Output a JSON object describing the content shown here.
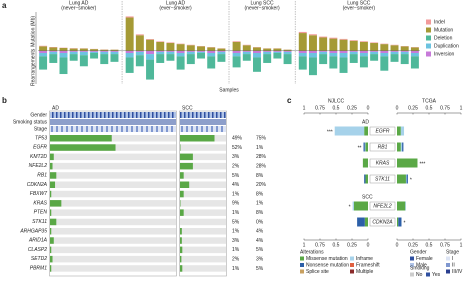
{
  "chart_data": [
    {
      "type": "bar",
      "label": "a",
      "ylabel_top": "Mutation (Mb)",
      "ylabel_bottom": "Rearrangements",
      "xlabel": "Samples",
      "ylim": [
        -30,
        35
      ],
      "groups": [
        {
          "name": "Lung AD",
          "note": "(never−smoker)"
        },
        {
          "name": "Lung AD",
          "note": "(ever−smoker)"
        },
        {
          "name": "Lung SCC",
          "note": "(never−smoker)"
        },
        {
          "name": "Lung SCC",
          "note": "(ever−smoker)"
        }
      ],
      "series": [
        {
          "name": "Indel",
          "color": "#f29a9a",
          "values": [
            [
              0.5,
              0.4,
              0.3,
              0.3,
              0.2,
              0.2,
              0.2,
              0.1
            ],
            [
              1,
              0.8,
              0.6,
              0.5,
              0.5,
              0.4,
              0.4,
              0.3,
              0.3,
              0.2
            ],
            [
              0.6,
              0.4,
              0.3,
              0.2,
              0.2,
              0.1
            ],
            [
              1,
              0.9,
              0.8,
              0.8,
              0.7,
              0.6,
              0.6,
              0.5,
              0.4,
              0.4,
              0.3,
              0.3
            ]
          ]
        },
        {
          "name": "Mutation",
          "color": "#a59a35",
          "values": [
            [
              4,
              3,
              2.5,
              2,
              2,
              1.5,
              1,
              1
            ],
            [
              30,
              14,
              10,
              8,
              7,
              6,
              5,
              4,
              3,
              2
            ],
            [
              8,
              5,
              3,
              2,
              2,
              1
            ],
            [
              16,
              14,
              12,
              11,
              10,
              9,
              8,
              7,
              6,
              5,
              4,
              3
            ]
          ]
        },
        {
          "name": "Deletion",
          "color": "#4fb89a",
          "values": [
            [
              -12,
              -8,
              -15,
              -6,
              -10,
              -5,
              -9,
              -7
            ],
            [
              -14,
              -10,
              -18,
              -8,
              -6,
              -12,
              -9,
              -5,
              -11,
              -7
            ],
            [
              -10,
              -6,
              -13,
              -8,
              -5,
              -9
            ],
            [
              -12,
              -16,
              -9,
              -11,
              -14,
              -8,
              -10,
              -6,
              -13,
              -7,
              -9,
              -11
            ]
          ]
        },
        {
          "name": "Duplication",
          "color": "#6cc3e0",
          "values": [
            [
              -3,
              -2,
              -4,
              -2,
              -3,
              -1,
              -2,
              -2
            ],
            [
              -4,
              -3,
              -5,
              -2,
              -2,
              -3,
              -2,
              -1,
              -3,
              -2
            ],
            [
              -3,
              -2,
              -4,
              -2,
              -1,
              -2
            ],
            [
              -3,
              -4,
              -2,
              -3,
              -4,
              -2,
              -3,
              -2,
              -3,
              -2,
              -2,
              -3
            ]
          ]
        },
        {
          "name": "Inversion",
          "color": "#c77ad9",
          "values": [
            [
              -2,
              -1,
              -2,
              -1,
              -1,
              -1,
              -1,
              -1
            ],
            [
              -2,
              -1,
              -3,
              -1,
              -1,
              -2,
              -1,
              -1,
              -2,
              -1
            ],
            [
              -2,
              -1,
              -2,
              -1,
              -1,
              -1
            ],
            [
              -2,
              -2,
              -1,
              -2,
              -2,
              -1,
              -2,
              -1,
              -2,
              -1,
              -1,
              -2
            ]
          ]
        }
      ]
    },
    {
      "type": "oncoprint",
      "label": "b",
      "covariates": [
        "Gender",
        "Smoking status",
        "Stage"
      ],
      "categories": [
        "TP53",
        "EGFR",
        "KMT2D",
        "NFE2L2",
        "RB1",
        "CDKN2A",
        "FBXW7",
        "KRAS",
        "PTEN",
        "STK11",
        "ARHGAP35",
        "ARID1A",
        "CLASP2",
        "SETD2",
        "PBRM1"
      ],
      "bar_color": "#5aa846",
      "series": [
        {
          "name": "AD",
          "text_color": "#222222",
          "values": [
            49,
            52,
            3,
            2,
            5,
            4,
            1,
            9,
            1,
            5,
            1,
            3,
            1,
            2,
            1
          ],
          "value_labels": [
            "49%",
            "52%",
            "3%",
            "2%",
            "5%",
            "4%",
            "1%",
            "9%",
            "1%",
            "5%",
            "1%",
            "3%",
            "1%",
            "2%",
            "1%"
          ]
        },
        {
          "name": "SCC",
          "text_color": "#e0443c",
          "values": [
            75,
            1,
            28,
            28,
            8,
            20,
            8,
            1,
            8,
            0,
            4,
            4,
            5,
            3,
            5
          ],
          "value_labels": [
            "75%",
            "1%",
            "28%",
            "28%",
            "8%",
            "20%",
            "8%",
            "1%",
            "8%",
            "0%",
            "4%",
            "4%",
            "5%",
            "3%",
            "5%"
          ]
        }
      ]
    },
    {
      "type": "butterfly",
      "label": "c",
      "cohorts": [
        "NJLCC",
        "TCGA"
      ],
      "xlim": [
        0,
        1
      ],
      "xticks": [
        1,
        0.75,
        0.5,
        0.25,
        0
      ],
      "groups": [
        {
          "name": "AD",
          "categories": [
            "EGFR",
            "RB1",
            "KRAS",
            "STK11"
          ],
          "stars": [
            "***",
            "**",
            "***",
            "*"
          ],
          "star_side": [
            "left",
            "left",
            "right",
            "right"
          ],
          "segments": [
            {
              "color": "#5aa846",
              "NJLCC": [
                0.06,
                0.04,
                0.08,
                0.04
              ],
              "TCGA": [
                0.06,
                0.06,
                0.32,
                0.14
              ]
            },
            {
              "color": "#a6d2ea",
              "NJLCC": [
                0.46,
                0.01,
                0,
                0
              ],
              "TCGA": [
                0.05,
                0.02,
                0,
                0.01
              ]
            },
            {
              "color": "#2c5fa8",
              "NJLCC": [
                0,
                0.02,
                0,
                0.02
              ],
              "TCGA": [
                0,
                0.02,
                0,
                0.02
              ]
            }
          ]
        },
        {
          "name": "SCC",
          "categories": [
            "NFE2L2",
            "CDKN2A"
          ],
          "stars": [
            "*",
            "*"
          ],
          "star_side": [
            "left",
            "right"
          ],
          "segments": [
            {
              "color": "#5aa846",
              "NJLCC": [
                0.22,
                0.05
              ],
              "TCGA": [
                0.13,
                0.02
              ]
            },
            {
              "color": "#a6d2ea",
              "NJLCC": [
                0.02,
                0
              ],
              "TCGA": [
                0.01,
                0
              ]
            },
            {
              "color": "#2c5fa8",
              "NJLCC": [
                0,
                0.12
              ],
              "TCGA": [
                0,
                0.05
              ]
            }
          ]
        }
      ],
      "legends": [
        {
          "title": "Alterations",
          "items": [
            {
              "name": "Missense mutation",
              "color": "#5aa846"
            },
            {
              "name": "Nonsense mutation",
              "color": "#2c5fa8"
            },
            {
              "name": "Splice site",
              "color": "#c8a060"
            },
            {
              "name": "Inframe",
              "color": "#a6d2ea"
            },
            {
              "name": "Frameshift",
              "color": "#e06040"
            },
            {
              "name": "Multiple",
              "color": "#8b2a2a"
            }
          ]
        },
        {
          "title": "Gender",
          "items": [
            {
              "name": "Female",
              "color": "#3050a0"
            },
            {
              "name": "Male",
              "color": "#b0c4e8"
            }
          ]
        },
        {
          "title": "Smoking",
          "items": [
            {
              "name": "No",
              "color": "#cccccc"
            },
            {
              "name": "Yes",
              "color": "#3050a0"
            }
          ]
        },
        {
          "title": "Stage",
          "items": [
            {
              "name": "I",
              "color": "#dde4f4"
            },
            {
              "name": "II",
              "color": "#8098d0"
            },
            {
              "name": "III/IV",
              "color": "#2a3f8f"
            }
          ]
        }
      ]
    }
  ]
}
